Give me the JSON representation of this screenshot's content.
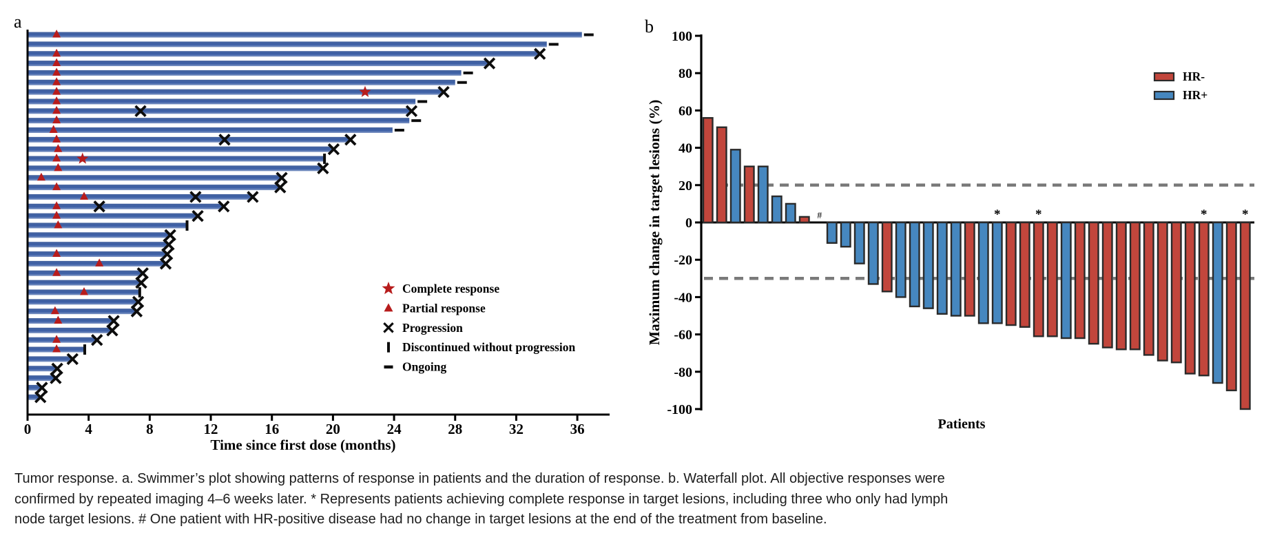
{
  "caption": {
    "lines": [
      "Tumor response. a. Swimmer’s plot showing patterns of response in patients and the duration of response. b. Waterfall plot. All objective responses were",
      "confirmed by repeated imaging 4–6 weeks later. * Represents patients achieving complete response in target lesions, including three who only had lymph",
      "node target lesions. # One patient with HR-positive disease had no change in target lesions at the end of the treatment from baseline."
    ]
  },
  "colors": {
    "swimmer_bar_blue": "#3c5fa6",
    "marker_red": "#b71c1c",
    "marker_black": "#0d0d0d",
    "waterfall_red": "#c2463c",
    "waterfall_blue": "#4687bf",
    "bar_outline": "#2a2a2a",
    "reference_dash_gray": "#7a7a7a",
    "axis_black": "#000000"
  },
  "chart_data": [
    {
      "type": "swimmer",
      "panel_label": "a",
      "xlabel": "Time since first dose (months)",
      "x_ticks": [
        0,
        4,
        8,
        12,
        16,
        20,
        24,
        28,
        32,
        36
      ],
      "xlim": [
        0,
        38
      ],
      "grid": false,
      "legend_position": "inside-right",
      "legend": [
        {
          "marker": "star",
          "label": "Complete response"
        },
        {
          "marker": "triangle",
          "label": "Partial response"
        },
        {
          "marker": "x",
          "label": "Progression"
        },
        {
          "marker": "bar",
          "label": "Discontinued without progression"
        },
        {
          "marker": "dash",
          "label": "Ongoing"
        }
      ],
      "patients": [
        {
          "months": 36.3,
          "end": "ongoing",
          "triangle": 1.9
        },
        {
          "months": 34.0,
          "end": "ongoing"
        },
        {
          "months": 33.5,
          "end": "progression",
          "triangle": 1.9
        },
        {
          "months": 30.2,
          "end": "progression",
          "triangle": 1.9
        },
        {
          "months": 28.4,
          "end": "ongoing",
          "triangle": 1.9
        },
        {
          "months": 28.0,
          "end": "ongoing",
          "triangle": 1.9
        },
        {
          "months": 27.2,
          "end": "progression",
          "triangle": 1.9,
          "star": 22.1
        },
        {
          "months": 25.4,
          "end": "ongoing",
          "triangle": 1.9
        },
        {
          "months": 25.1,
          "end": "progression",
          "triangle": 1.9,
          "x_mid": 7.4
        },
        {
          "months": 25.0,
          "end": "ongoing",
          "triangle": 1.9
        },
        {
          "months": 23.9,
          "end": "ongoing",
          "triangle": 1.7
        },
        {
          "months": 21.1,
          "end": "progression",
          "triangle": 1.9,
          "x_mid": 12.9
        },
        {
          "months": 20.0,
          "end": "progression",
          "triangle": 2.0
        },
        {
          "months": 19.4,
          "end": "discontinued",
          "triangle": 1.9,
          "star": 3.6
        },
        {
          "months": 19.3,
          "end": "progression",
          "triangle": 2.0
        },
        {
          "months": 16.6,
          "end": "progression",
          "triangle": 0.9
        },
        {
          "months": 16.5,
          "end": "progression",
          "triangle": 1.9
        },
        {
          "months": 14.7,
          "end": "progression",
          "triangle": 3.7,
          "x_mid": 11.0
        },
        {
          "months": 12.8,
          "end": "progression",
          "triangle": 1.9,
          "x_mid": 4.7
        },
        {
          "months": 11.1,
          "end": "progression",
          "triangle": 1.9
        },
        {
          "months": 10.4,
          "end": "discontinued",
          "triangle": 2.0
        },
        {
          "months": 9.3,
          "end": "progression"
        },
        {
          "months": 9.2,
          "end": "progression"
        },
        {
          "months": 9.1,
          "end": "progression",
          "triangle": 1.9
        },
        {
          "months": 9.0,
          "end": "progression",
          "triangle": 4.7
        },
        {
          "months": 7.5,
          "end": "progression",
          "triangle": 1.9
        },
        {
          "months": 7.4,
          "end": "progression"
        },
        {
          "months": 7.3,
          "end": "discontinued",
          "triangle": 3.7
        },
        {
          "months": 7.2,
          "end": "progression"
        },
        {
          "months": 7.1,
          "end": "progression",
          "triangle": 1.8
        },
        {
          "months": 5.6,
          "end": "progression",
          "triangle": 2.0
        },
        {
          "months": 5.5,
          "end": "progression"
        },
        {
          "months": 4.5,
          "end": "progression",
          "triangle": 1.9
        },
        {
          "months": 3.7,
          "end": "discontinued",
          "triangle": 1.9
        },
        {
          "months": 2.9,
          "end": "progression"
        },
        {
          "months": 1.9,
          "end": "progression"
        },
        {
          "months": 1.8,
          "end": "progression"
        },
        {
          "months": 0.9,
          "end": "progression"
        },
        {
          "months": 0.8,
          "end": "progression"
        }
      ]
    },
    {
      "type": "waterfall",
      "panel_label": "b",
      "ylabel": "Maximum change in target lesions (%)",
      "xlabel": "Patients",
      "ylim": [
        -100,
        100
      ],
      "y_ticks": [
        100,
        80,
        60,
        40,
        20,
        0,
        -20,
        -40,
        -60,
        -80,
        -100
      ],
      "reference_lines": [
        20,
        -30
      ],
      "grid": false,
      "legend_position": "top-right",
      "legend": [
        {
          "label": "HR-",
          "color": "#c2463c"
        },
        {
          "label": "HR+",
          "color": "#4687bf"
        }
      ],
      "bars": [
        {
          "value": 56,
          "group": "HR-"
        },
        {
          "value": 51,
          "group": "HR-"
        },
        {
          "value": 39,
          "group": "HR+"
        },
        {
          "value": 30,
          "group": "HR-"
        },
        {
          "value": 30,
          "group": "HR+"
        },
        {
          "value": 14,
          "group": "HR+"
        },
        {
          "value": 10,
          "group": "HR+"
        },
        {
          "value": 3,
          "group": "HR-"
        },
        {
          "value": 0,
          "group": "HR+",
          "note": "#"
        },
        {
          "value": -11,
          "group": "HR+"
        },
        {
          "value": -13,
          "group": "HR+"
        },
        {
          "value": -22,
          "group": "HR+"
        },
        {
          "value": -33,
          "group": "HR+"
        },
        {
          "value": -37,
          "group": "HR-"
        },
        {
          "value": -40,
          "group": "HR+"
        },
        {
          "value": -45,
          "group": "HR+"
        },
        {
          "value": -46,
          "group": "HR+"
        },
        {
          "value": -49,
          "group": "HR+"
        },
        {
          "value": -50,
          "group": "HR+"
        },
        {
          "value": -50,
          "group": "HR-"
        },
        {
          "value": -54,
          "group": "HR+"
        },
        {
          "value": -54,
          "group": "HR+",
          "note": "*"
        },
        {
          "value": -55,
          "group": "HR-"
        },
        {
          "value": -56,
          "group": "HR-"
        },
        {
          "value": -61,
          "group": "HR-",
          "note": "*"
        },
        {
          "value": -61,
          "group": "HR-"
        },
        {
          "value": -62,
          "group": "HR+"
        },
        {
          "value": -62,
          "group": "HR-"
        },
        {
          "value": -65,
          "group": "HR-"
        },
        {
          "value": -67,
          "group": "HR-"
        },
        {
          "value": -68,
          "group": "HR-"
        },
        {
          "value": -68,
          "group": "HR-"
        },
        {
          "value": -71,
          "group": "HR-"
        },
        {
          "value": -74,
          "group": "HR-"
        },
        {
          "value": -75,
          "group": "HR-"
        },
        {
          "value": -81,
          "group": "HR-"
        },
        {
          "value": -82,
          "group": "HR-",
          "note": "*"
        },
        {
          "value": -86,
          "group": "HR+"
        },
        {
          "value": -90,
          "group": "HR-"
        },
        {
          "value": -100,
          "group": "HR-",
          "note": "*"
        }
      ]
    }
  ]
}
